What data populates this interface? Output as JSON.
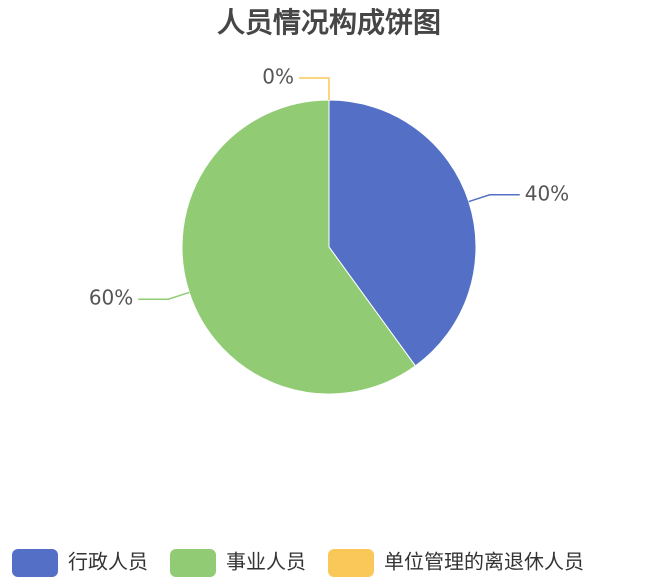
{
  "chart_data": {
    "type": "pie",
    "title": "人员情况构成饼图",
    "categories": [
      "行政人员",
      "事业人员",
      "单位管理的离退休人员"
    ],
    "values": [
      40,
      60,
      0
    ],
    "value_labels": [
      "40%",
      "60%",
      "0%"
    ],
    "colors": [
      "#5470c6",
      "#91cc75",
      "#fac858"
    ],
    "legend": "bottom"
  }
}
